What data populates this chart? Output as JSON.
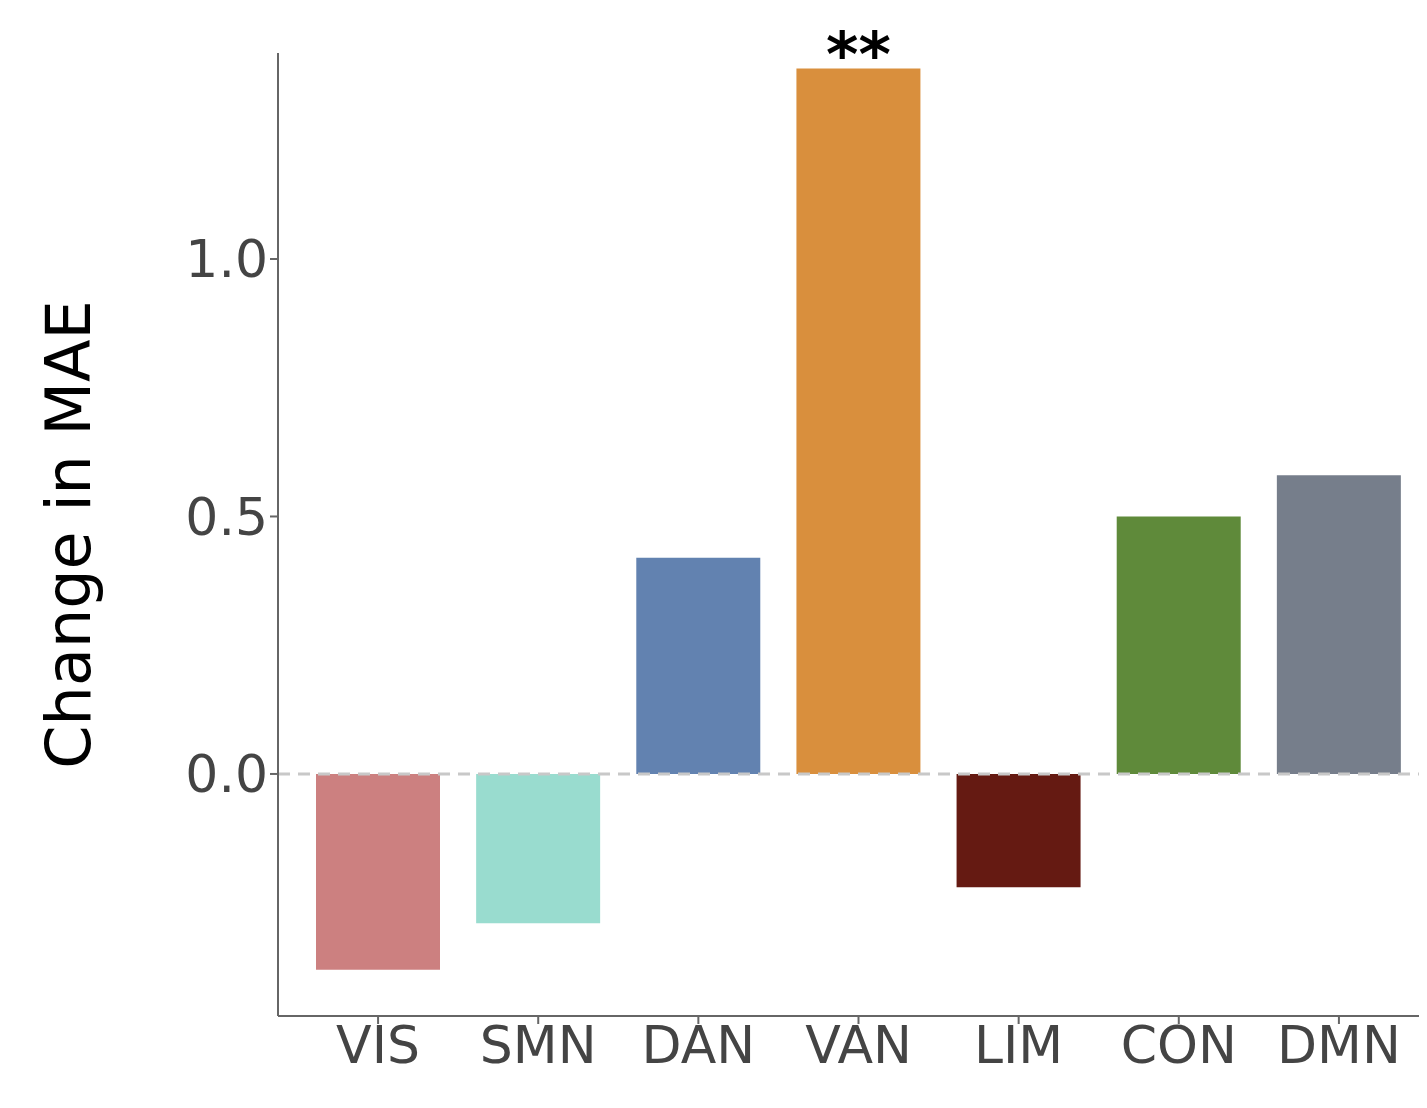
{
  "chart_data": {
    "type": "bar",
    "ylabel": "Change in MAE",
    "categories": [
      "VIS",
      "SMN",
      "DAN",
      "VAN",
      "LIM",
      "CON",
      "DMN"
    ],
    "values": [
      -0.38,
      -0.29,
      0.42,
      1.37,
      -0.22,
      0.5,
      0.58
    ],
    "colors": [
      "#cc8080",
      "#99dccf",
      "#6282b0",
      "#d98f3d",
      "#651a12",
      "#5f8a3a",
      "#767e8b"
    ],
    "ylim": [
      -0.47,
      1.4
    ],
    "yticks": [
      {
        "value": 0,
        "label": "0.0"
      },
      {
        "value": 0.5,
        "label": "0.5"
      },
      {
        "value": 1,
        "label": "1.0"
      }
    ],
    "ref_lines": [
      {
        "axis": "y",
        "value": 0,
        "color": "#c8c8c8",
        "line_style": "dashed"
      }
    ],
    "annotations": [
      {
        "text": "**",
        "x": "VAN",
        "y": 1.37
      }
    ],
    "data_labels": false
  }
}
